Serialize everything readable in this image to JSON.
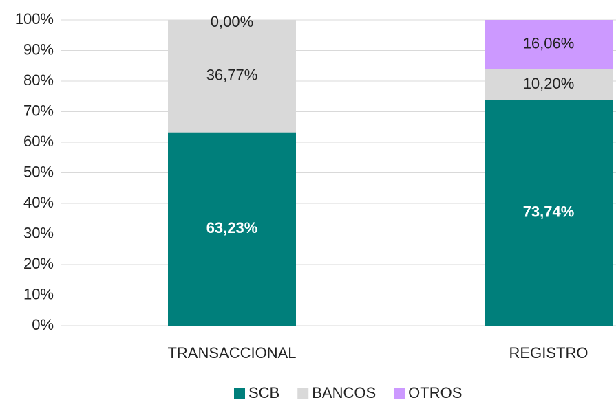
{
  "chart_data": {
    "type": "stacked_bar",
    "categories": [
      "TRANSACCIONAL",
      "REGISTRO"
    ],
    "series": [
      {
        "name": "SCB",
        "color": "#007f7b",
        "values": [
          63.23,
          73.74
        ],
        "value_labels": [
          "63,23%",
          "73,74%"
        ]
      },
      {
        "name": "BANCOS",
        "color": "#d9d9d9",
        "values": [
          36.77,
          10.2
        ],
        "value_labels": [
          "36,77%",
          "10,20%"
        ]
      },
      {
        "name": "OTROS",
        "color": "#cc99ff",
        "values": [
          0.0,
          16.06
        ],
        "value_labels": [
          "0,00%",
          "16,06%"
        ]
      }
    ],
    "ylim": [
      0,
      100
    ],
    "yticks": [
      {
        "value": 0,
        "label": "0%"
      },
      {
        "value": 10,
        "label": "10%"
      },
      {
        "value": 20,
        "label": "20%"
      },
      {
        "value": 30,
        "label": "30%"
      },
      {
        "value": 40,
        "label": "40%"
      },
      {
        "value": 50,
        "label": "50%"
      },
      {
        "value": 60,
        "label": "60%"
      },
      {
        "value": 70,
        "label": "70%"
      },
      {
        "value": 80,
        "label": "80%"
      },
      {
        "value": 90,
        "label": "90%"
      },
      {
        "value": 100,
        "label": "100%"
      }
    ],
    "grid": true,
    "legend": "bottom"
  }
}
